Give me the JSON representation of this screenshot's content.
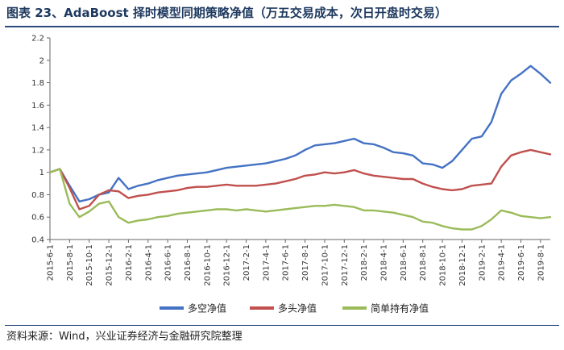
{
  "caption": "图表 23、AdaBoost 择时模型同期策略净值（万五交易成本，次日开盘时交易）",
  "source": "资料来源：Wind，兴业证券经济与金融研究院整理",
  "chart_data": {
    "type": "line",
    "title": "",
    "xlabel": "",
    "ylabel": "",
    "ylim": [
      0.4,
      2.2
    ],
    "yticks": [
      "0.4",
      "0.6",
      "0.8",
      "1",
      "1.2",
      "1.4",
      "1.6",
      "1.8",
      "2",
      "2.2"
    ],
    "x_tick_labels": [
      "2015-6-1",
      "2015-8-1",
      "2015-10-1",
      "2015-12-1",
      "2016-2-1",
      "2016-4-1",
      "2016-6-1",
      "2016-8-1",
      "2016-10-1",
      "2016-12-1",
      "2017-2-1",
      "2017-4-1",
      "2017-6-1",
      "2017-8-1",
      "2017-10-1",
      "2017-12-1",
      "2018-2-1",
      "2018-4-1",
      "2018-6-1",
      "2018-8-1",
      "2018-10-1",
      "2018-12-1",
      "2019-2-1",
      "2019-4-1",
      "2019-6-1",
      "2019-8-1"
    ],
    "grid": false,
    "legend_position": "bottom",
    "x": [
      "2015-6-1",
      "2015-7-1",
      "2015-8-1",
      "2015-9-1",
      "2015-10-1",
      "2015-11-1",
      "2015-12-1",
      "2016-1-1",
      "2016-2-1",
      "2016-3-1",
      "2016-4-1",
      "2016-5-1",
      "2016-6-1",
      "2016-7-1",
      "2016-8-1",
      "2016-9-1",
      "2016-10-1",
      "2016-11-1",
      "2016-12-1",
      "2017-1-1",
      "2017-2-1",
      "2017-3-1",
      "2017-4-1",
      "2017-5-1",
      "2017-6-1",
      "2017-7-1",
      "2017-8-1",
      "2017-9-1",
      "2017-10-1",
      "2017-11-1",
      "2017-12-1",
      "2018-1-1",
      "2018-2-1",
      "2018-3-1",
      "2018-4-1",
      "2018-5-1",
      "2018-6-1",
      "2018-7-1",
      "2018-8-1",
      "2018-9-1",
      "2018-10-1",
      "2018-11-1",
      "2018-12-1",
      "2019-1-1",
      "2019-2-1",
      "2019-3-1",
      "2019-4-1",
      "2019-5-1",
      "2019-6-1",
      "2019-7-1",
      "2019-8-1",
      "2019-9-1"
    ],
    "series": [
      {
        "name": "多空净值",
        "color": "#4472c4",
        "values": [
          1.0,
          1.03,
          0.88,
          0.74,
          0.76,
          0.8,
          0.82,
          0.95,
          0.85,
          0.88,
          0.9,
          0.93,
          0.95,
          0.97,
          0.98,
          0.99,
          1.0,
          1.02,
          1.04,
          1.05,
          1.06,
          1.07,
          1.08,
          1.1,
          1.12,
          1.15,
          1.2,
          1.24,
          1.25,
          1.26,
          1.28,
          1.3,
          1.26,
          1.25,
          1.22,
          1.18,
          1.17,
          1.15,
          1.08,
          1.07,
          1.04,
          1.1,
          1.2,
          1.3,
          1.32,
          1.45,
          1.7,
          1.82,
          1.88,
          1.95,
          1.88,
          1.8
        ]
      },
      {
        "name": "多头净值",
        "color": "#c0504d",
        "values": [
          1.0,
          1.03,
          0.86,
          0.67,
          0.7,
          0.8,
          0.84,
          0.83,
          0.77,
          0.79,
          0.8,
          0.82,
          0.83,
          0.84,
          0.86,
          0.87,
          0.87,
          0.88,
          0.89,
          0.88,
          0.88,
          0.88,
          0.89,
          0.9,
          0.92,
          0.94,
          0.97,
          0.98,
          1.0,
          0.99,
          1.0,
          1.02,
          0.99,
          0.97,
          0.96,
          0.95,
          0.94,
          0.94,
          0.9,
          0.87,
          0.85,
          0.84,
          0.85,
          0.88,
          0.89,
          0.9,
          1.05,
          1.15,
          1.18,
          1.2,
          1.18,
          1.16
        ]
      },
      {
        "name": "简单持有净值",
        "color": "#9bbb59",
        "values": [
          1.0,
          1.03,
          0.72,
          0.6,
          0.65,
          0.72,
          0.74,
          0.6,
          0.55,
          0.57,
          0.58,
          0.6,
          0.61,
          0.63,
          0.64,
          0.65,
          0.66,
          0.67,
          0.67,
          0.66,
          0.67,
          0.66,
          0.65,
          0.66,
          0.67,
          0.68,
          0.69,
          0.7,
          0.7,
          0.71,
          0.7,
          0.69,
          0.66,
          0.66,
          0.65,
          0.64,
          0.62,
          0.6,
          0.56,
          0.55,
          0.52,
          0.5,
          0.49,
          0.49,
          0.52,
          0.58,
          0.66,
          0.64,
          0.61,
          0.6,
          0.59,
          0.6
        ]
      }
    ]
  }
}
